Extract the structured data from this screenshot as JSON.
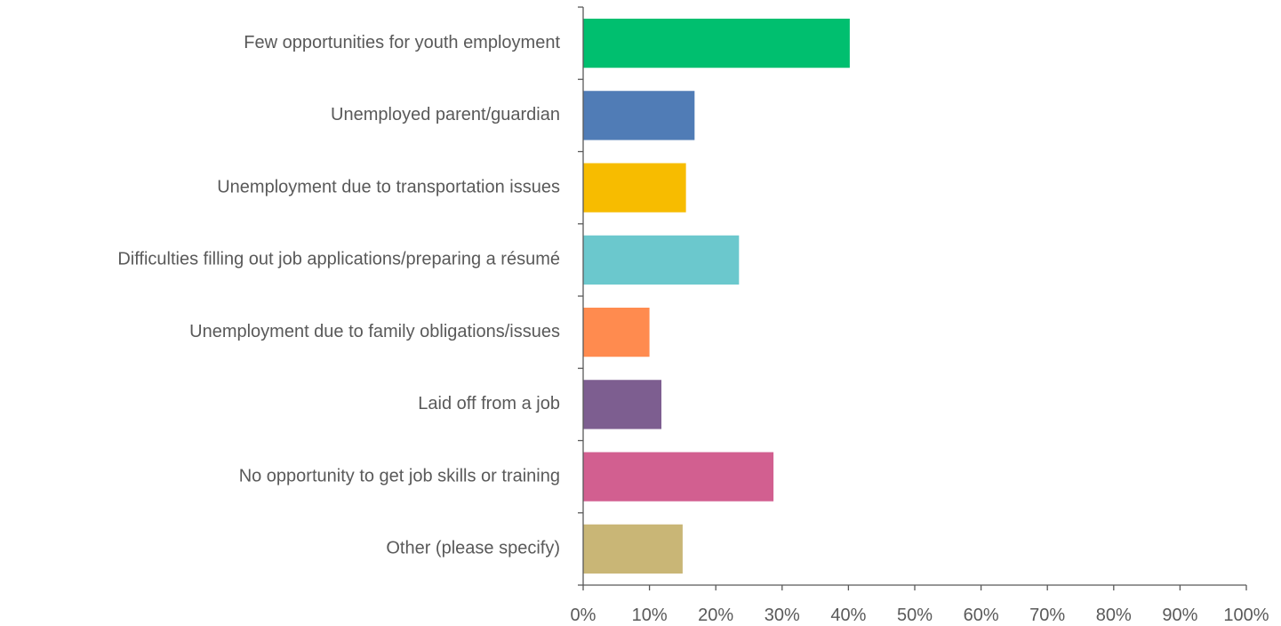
{
  "chart_data": {
    "type": "bar",
    "orientation": "horizontal",
    "categories": [
      "Few opportunities for youth employment",
      "Unemployed parent/guardian",
      "Unemployment due to transportation issues",
      "Difficulties filling out job applications/preparing a résumé",
      "Unemployment due to family obligations/issues",
      "Laid off from a job",
      "No opportunity to get job skills or training",
      "Other (please specify)"
    ],
    "values": [
      40.2,
      16.8,
      15.5,
      23.5,
      10.0,
      11.8,
      28.7,
      15.0
    ],
    "colors": [
      "#00BF6F",
      "#507CB6",
      "#F7BC00",
      "#6BC8CD",
      "#FF8B4F",
      "#7D5E90",
      "#D25F90",
      "#C9B676"
    ],
    "xlim": [
      0,
      100
    ],
    "xticks": [
      "0%",
      "10%",
      "20%",
      "30%",
      "40%",
      "50%",
      "60%",
      "70%",
      "80%",
      "90%",
      "100%"
    ],
    "title": "",
    "xlabel": "",
    "ylabel": "",
    "grid": false,
    "legend": "none"
  }
}
